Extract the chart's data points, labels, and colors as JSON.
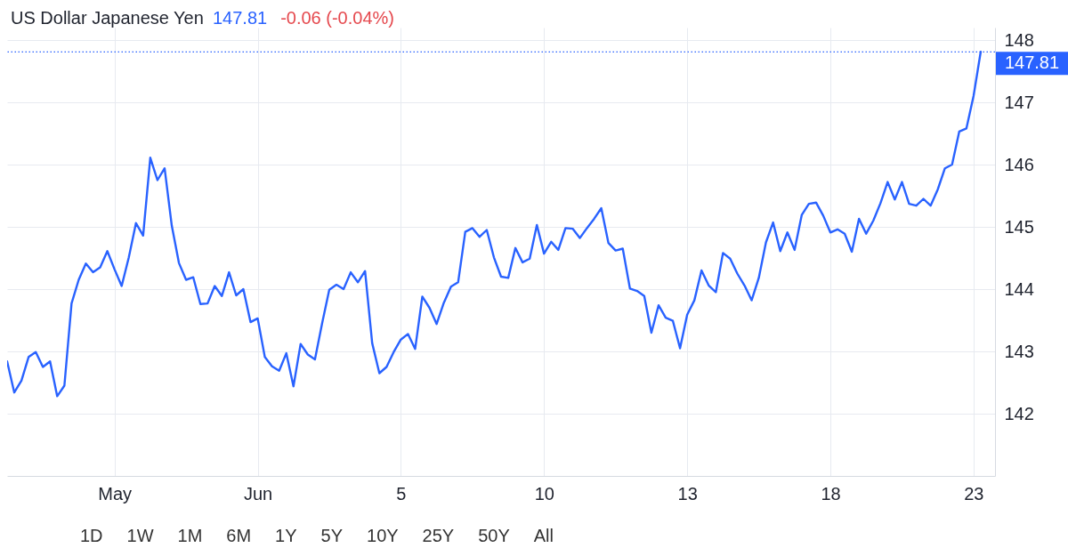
{
  "chart_data": {
    "type": "line",
    "title": "US Dollar Japanese Yen",
    "annotations": [
      "147.81",
      "-0.06 (-0.04%)",
      "1D",
      "1W",
      "1M",
      "6M",
      "1Y",
      "5Y",
      "10Y",
      "25Y",
      "50Y",
      "All"
    ],
    "categories": [
      null,
      null,
      null,
      null,
      null,
      null,
      null,
      null,
      null,
      null,
      null,
      null,
      null,
      null,
      null,
      "May",
      null,
      null,
      null,
      null,
      null,
      null,
      null,
      null,
      null,
      null,
      null,
      null,
      null,
      null,
      null,
      null,
      null,
      null,
      null,
      "Jun",
      null,
      null,
      null,
      null,
      null,
      null,
      null,
      null,
      null,
      null,
      null,
      null,
      null,
      null,
      null,
      null,
      null,
      null,
      null,
      "5",
      null,
      null,
      null,
      null,
      null,
      null,
      null,
      null,
      null,
      null,
      null,
      null,
      null,
      null,
      null,
      null,
      null,
      null,
      null,
      "10",
      null,
      null,
      null,
      null,
      null,
      null,
      null,
      null,
      null,
      null,
      null,
      null,
      null,
      null,
      null,
      null,
      null,
      null,
      null,
      "13",
      null,
      null,
      null,
      null,
      null,
      null,
      null,
      null,
      null,
      null,
      null,
      null,
      null,
      null,
      null,
      null,
      null,
      null,
      null,
      "18",
      null,
      null,
      null,
      null,
      null,
      null,
      null,
      null,
      null,
      null,
      null,
      null,
      null,
      null,
      null,
      null,
      null,
      null,
      null,
      "23",
      null,
      null,
      null
    ],
    "series": [
      {
        "color": "#2962ff",
        "values": [
          142.84,
          142.34,
          142.53,
          142.91,
          142.99,
          142.75,
          142.84,
          142.28,
          142.45,
          143.77,
          144.15,
          144.41,
          144.27,
          144.35,
          144.61,
          144.32,
          144.05,
          144.51,
          145.06,
          144.86,
          146.11,
          145.75,
          145.94,
          145.02,
          144.42,
          144.15,
          144.19,
          143.76,
          143.77,
          144.05,
          143.89,
          144.27,
          143.9,
          144.0,
          143.47,
          143.53,
          142.91,
          142.76,
          142.69,
          142.97,
          142.44,
          143.12,
          142.95,
          142.87,
          143.45,
          143.99,
          144.07,
          144.0,
          144.27,
          144.11,
          144.29,
          143.13,
          142.65,
          142.75,
          142.99,
          143.19,
          143.28,
          143.04,
          143.88,
          143.7,
          143.44,
          143.78,
          144.04,
          144.11,
          144.92,
          144.98,
          144.84,
          144.95,
          144.51,
          144.2,
          144.18,
          144.66,
          144.43,
          144.49,
          145.03,
          144.57,
          144.76,
          144.63,
          144.98,
          144.97,
          144.82,
          144.98,
          145.13,
          145.3,
          144.74,
          144.62,
          144.65,
          144.01,
          143.97,
          143.89,
          143.3,
          143.74,
          143.54,
          143.49,
          143.05,
          143.59,
          143.82,
          144.3,
          144.06,
          143.95,
          144.58,
          144.49,
          144.25,
          144.06,
          143.82,
          144.18,
          144.75,
          145.07,
          144.61,
          144.91,
          144.63,
          145.19,
          145.37,
          145.39,
          145.18,
          144.91,
          144.96,
          144.89,
          144.6,
          145.13,
          144.89,
          145.1,
          145.38,
          145.72,
          145.44,
          145.72,
          145.37,
          145.34,
          145.45,
          145.34,
          145.6,
          145.94,
          146.0,
          146.53,
          146.58,
          147.1,
          147.81,
          null,
          null
        ]
      }
    ],
    "ylim": [
      141.0,
      148.2
    ],
    "yticks": [
      142,
      143,
      144,
      145,
      146,
      147,
      148
    ],
    "ref_lines": [
      {
        "axis": "y",
        "value": 147.81,
        "label": "147.81",
        "color": "#2962ff",
        "line_style": "dotted"
      }
    ],
    "grid": true
  }
}
